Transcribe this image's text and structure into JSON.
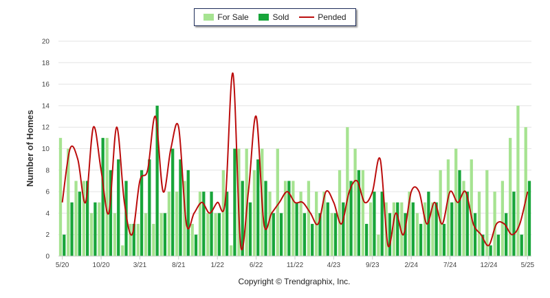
{
  "legend": {
    "for_sale_label": "For Sale",
    "sold_label": "Sold",
    "pended_label": "Pended"
  },
  "footer": {
    "copyright": "Copyright © Trendgraphix, Inc."
  },
  "colors": {
    "for_sale": "#a6e391",
    "sold": "#18a53a",
    "pended": "#bb0c0c",
    "grid": "#e3e3e3",
    "axis": "#c9c9c9"
  },
  "chart_data": {
    "type": "bar",
    "ylabel": "Number of Homes",
    "xlabel": "",
    "ylim": [
      0,
      20
    ],
    "yticks": [
      0,
      2,
      4,
      6,
      8,
      10,
      12,
      14,
      16,
      18,
      20
    ],
    "grid": true,
    "legend_position": "top-center",
    "x_tick_labels": [
      {
        "index": 0,
        "label": "5/20"
      },
      {
        "index": 5,
        "label": "10/20"
      },
      {
        "index": 10,
        "label": "3/21"
      },
      {
        "index": 15,
        "label": "8/21"
      },
      {
        "index": 20,
        "label": "1/22"
      },
      {
        "index": 25,
        "label": "6/22"
      },
      {
        "index": 30,
        "label": "11/22"
      },
      {
        "index": 35,
        "label": "4/23"
      },
      {
        "index": 40,
        "label": "9/23"
      },
      {
        "index": 45,
        "label": "2/24"
      },
      {
        "index": 50,
        "label": "7/24"
      },
      {
        "index": 55,
        "label": "12/24"
      },
      {
        "index": 60,
        "label": "5/25"
      }
    ],
    "categories": [
      "5/20",
      "6/20",
      "7/20",
      "8/20",
      "9/20",
      "10/20",
      "11/20",
      "12/20",
      "1/21",
      "2/21",
      "3/21",
      "4/21",
      "5/21",
      "6/21",
      "7/21",
      "8/21",
      "9/21",
      "10/21",
      "11/21",
      "12/21",
      "1/22",
      "2/22",
      "3/22",
      "4/22",
      "5/22",
      "6/22",
      "7/22",
      "8/22",
      "9/22",
      "10/22",
      "11/22",
      "12/22",
      "1/23",
      "2/23",
      "3/23",
      "4/23",
      "5/23",
      "6/23",
      "7/23",
      "8/23",
      "9/23",
      "10/23",
      "11/23",
      "12/23",
      "1/24",
      "2/24",
      "3/24",
      "4/24",
      "5/24",
      "6/24",
      "7/24",
      "8/24",
      "9/24",
      "10/24",
      "11/24",
      "12/24",
      "1/25",
      "2/25",
      "3/25",
      "4/25",
      "5/25"
    ],
    "series": [
      {
        "name": "For Sale",
        "type": "bar",
        "values": [
          11,
          10,
          7,
          7,
          4,
          5,
          11,
          4,
          1,
          3,
          3,
          4,
          3,
          4,
          6,
          6,
          7,
          3,
          6,
          4,
          4,
          8,
          1,
          10,
          10,
          8,
          10,
          6,
          10,
          7,
          7,
          6,
          7,
          6,
          6,
          4,
          8,
          12,
          10,
          8,
          5,
          2,
          5,
          5,
          5,
          6,
          4,
          5,
          5,
          8,
          9,
          10,
          7,
          9,
          6,
          8,
          6,
          7,
          11,
          14,
          12
        ]
      },
      {
        "name": "Sold",
        "type": "bar",
        "values": [
          2,
          5,
          6,
          7,
          5,
          11,
          8,
          9,
          7,
          3,
          8,
          9,
          14,
          4,
          10,
          9,
          8,
          2,
          6,
          6,
          4,
          6,
          10,
          7,
          5,
          9,
          7,
          4,
          4,
          7,
          5,
          4,
          3,
          4,
          5,
          4,
          5,
          7,
          8,
          3,
          6,
          6,
          4,
          5,
          4,
          5,
          3,
          6,
          5,
          3,
          5,
          8,
          6,
          4,
          2,
          1,
          2,
          4,
          6,
          2,
          7
        ]
      },
      {
        "name": "Pended",
        "type": "line",
        "values": [
          5,
          10,
          9,
          5,
          12,
          8,
          4,
          12,
          5,
          2,
          7,
          8,
          13,
          6,
          10,
          12,
          3,
          4,
          5,
          4,
          5,
          5,
          17,
          1,
          6,
          13,
          3,
          4,
          5,
          6,
          5,
          5,
          4,
          3,
          6,
          5,
          3,
          6,
          7,
          5,
          6,
          9,
          1,
          4,
          2,
          6,
          6,
          3,
          5,
          3,
          6,
          5,
          6,
          3,
          2,
          1,
          3,
          3,
          2,
          3,
          6
        ]
      }
    ]
  }
}
